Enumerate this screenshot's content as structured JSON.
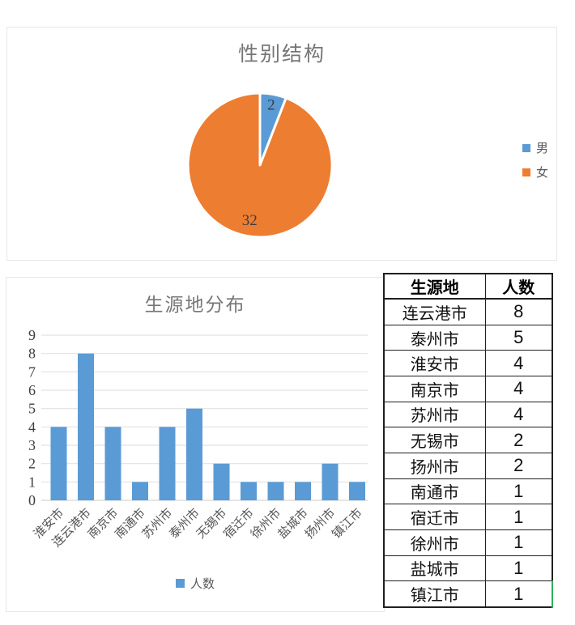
{
  "app": {
    "view": "spreadsheet charts and table"
  },
  "colors": {
    "male_blue": "#5B9BD5",
    "female_orange": "#ED7D31",
    "bar_blue": "#5B9BD5",
    "gridline": "#e2e2e2",
    "axis_text": "#3f3f3f",
    "title_gray": "#767676",
    "legend_text": "#595959",
    "table_border": "#1f1f1f",
    "selection_green": "#2fae5d"
  },
  "chart_data": [
    {
      "type": "pie",
      "title": "性别结构",
      "categories": [
        "男",
        "女"
      ],
      "values": [
        2,
        32
      ],
      "data_labels": [
        "2",
        "32"
      ],
      "slice_colors": [
        "#5B9BD5",
        "#ED7D31"
      ],
      "legend_position": "right",
      "legend": [
        {
          "label": "男",
          "color": "#5B9BD5"
        },
        {
          "label": "女",
          "color": "#ED7D31"
        }
      ]
    },
    {
      "type": "bar",
      "title": "生源地分布",
      "series_name": "人数",
      "categories": [
        "淮安市",
        "连云港市",
        "南京市",
        "南通市",
        "苏州市",
        "泰州市",
        "无锡市",
        "宿迁市",
        "徐州市",
        "盐城市",
        "扬州市",
        "镇江市"
      ],
      "values": [
        4,
        8,
        4,
        1,
        4,
        5,
        2,
        1,
        1,
        1,
        2,
        1
      ],
      "ylim": [
        0,
        9
      ],
      "ytick_step": 1,
      "yticks": [
        0,
        1,
        2,
        3,
        4,
        5,
        6,
        7,
        8,
        9
      ],
      "grid": true,
      "bar_color": "#5B9BD5",
      "legend_position": "bottom",
      "xlabel_rotation_deg": -45
    }
  ],
  "table": {
    "headers": [
      "生源地",
      "人数"
    ],
    "rows": [
      [
        "连云港市",
        "8"
      ],
      [
        "泰州市",
        "5"
      ],
      [
        "淮安市",
        "4"
      ],
      [
        "南京市",
        "4"
      ],
      [
        "苏州市",
        "4"
      ],
      [
        "无锡市",
        "2"
      ],
      [
        "扬州市",
        "2"
      ],
      [
        "南通市",
        "1"
      ],
      [
        "宿迁市",
        "1"
      ],
      [
        "徐州市",
        "1"
      ],
      [
        "盐城市",
        "1"
      ],
      [
        "镇江市",
        "1"
      ]
    ],
    "selection": {
      "row_index": 11,
      "col_index": 1
    }
  }
}
